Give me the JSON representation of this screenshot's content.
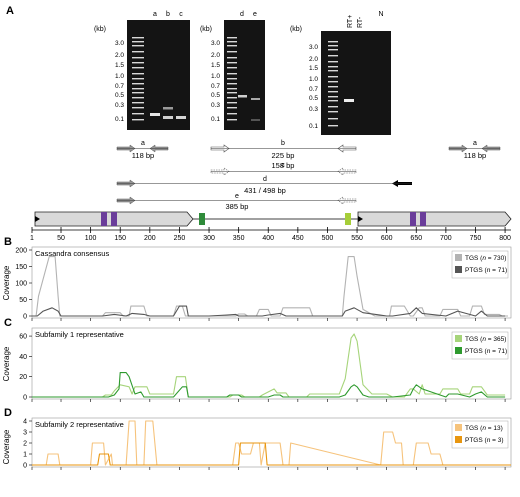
{
  "panel_a": {
    "letter": "A",
    "gels": [
      {
        "kb_label": "(kb)",
        "lanes": [
          "a",
          "b",
          "c"
        ],
        "ladder": [
          "3.0",
          "2.0",
          "1.5",
          "1.0",
          "0.7",
          "0.5",
          "0.3",
          "0.1"
        ]
      },
      {
        "kb_label": "(kb)",
        "lanes": [
          "d",
          "e"
        ],
        "ladder": [
          "3.0",
          "2.0",
          "1.5",
          "1.0",
          "0.7",
          "0.5",
          "0.3",
          "0.1"
        ]
      },
      {
        "kb_label": "(kb)",
        "lanes": [
          "RT+",
          "RT-",
          "N"
        ],
        "ladder": [
          "3.0",
          "2.0",
          "1.5",
          "1.0",
          "0.7",
          "0.5",
          "0.3",
          "0.1"
        ]
      }
    ],
    "amplicons": [
      {
        "letter": "a",
        "size": "118 bp"
      },
      {
        "letter": "b",
        "size": "225 bp"
      },
      {
        "letter": "c",
        "size": "158 bp"
      },
      {
        "letter": "d",
        "size": "431 / 498 bp"
      },
      {
        "letter": "e",
        "size": "385 bp"
      },
      {
        "letter": "a",
        "size": "118 bp"
      }
    ],
    "ruler_ticks": [
      "1",
      "50",
      "100",
      "150",
      "200",
      "250",
      "300",
      "350",
      "400",
      "450",
      "500",
      "550",
      "600",
      "650",
      "700",
      "750",
      "800"
    ]
  },
  "panels": [
    {
      "letter": "B",
      "title": "Cassandra consensus",
      "ylabel": "Coverage",
      "legend": [
        {
          "name": "TGS",
          "n": "730",
          "color": "#b3b3b3"
        },
        {
          "name": "PTGS",
          "n": "71",
          "color": "#555555"
        }
      ]
    },
    {
      "letter": "C",
      "title": "Subfamily 1 representative",
      "ylabel": "Coverage",
      "legend": [
        {
          "name": "TGS",
          "n": "365",
          "color": "#a6d47a"
        },
        {
          "name": "PTGS",
          "n": "71",
          "color": "#2e9a2e"
        }
      ]
    },
    {
      "letter": "D",
      "title": "Subfamily 2 representative",
      "ylabel": "Coverage",
      "legend": [
        {
          "name": "TGS",
          "n": "13",
          "color": "#f6c37c"
        },
        {
          "name": "PTGS",
          "n": "3",
          "color": "#e8960f"
        }
      ]
    }
  ],
  "chart_data": [
    {
      "type": "line",
      "title": "Cassandra consensus",
      "ylabel": "Coverage",
      "xlim": [
        1,
        800
      ],
      "ylim": [
        0,
        200
      ],
      "yticks": [
        "0",
        "50",
        "100",
        "150",
        "200"
      ],
      "series": [
        {
          "name": "TGS",
          "color": "#b3b3b3",
          "x": [
            1,
            8,
            12,
            30,
            33,
            40,
            45,
            48,
            120,
            125,
            150,
            155,
            165,
            168,
            190,
            195,
            240,
            245,
            255,
            260,
            265,
            345,
            350,
            360,
            365,
            380,
            385,
            400,
            405,
            420,
            425,
            470,
            475,
            525,
            528,
            535,
            545,
            550,
            560,
            580,
            605,
            608,
            630,
            640,
            645,
            655,
            660,
            665,
            690,
            695,
            720,
            725,
            740,
            745,
            760,
            765,
            790,
            795,
            805
          ],
          "y": [
            0,
            0,
            60,
            180,
            180,
            180,
            60,
            0,
            0,
            10,
            10,
            0,
            0,
            30,
            30,
            0,
            0,
            30,
            30,
            0,
            0,
            0,
            6,
            6,
            0,
            0,
            20,
            20,
            0,
            0,
            25,
            25,
            0,
            0,
            60,
            180,
            180,
            120,
            20,
            0,
            0,
            30,
            30,
            0,
            0,
            25,
            25,
            0,
            0,
            20,
            20,
            0,
            0,
            30,
            30,
            5,
            5,
            0,
            0
          ]
        },
        {
          "name": "PTGS",
          "color": "#555555",
          "x": [
            1,
            10,
            20,
            35,
            45,
            50,
            120,
            140,
            160,
            170,
            190,
            200,
            240,
            250,
            262,
            265,
            300,
            330,
            345,
            350,
            390,
            400,
            420,
            430,
            470,
            525,
            530,
            545,
            560,
            600,
            610,
            640,
            650,
            660,
            700,
            720,
            740,
            750,
            760,
            770,
            800
          ],
          "y": [
            0,
            0,
            15,
            25,
            15,
            0,
            0,
            5,
            0,
            8,
            5,
            0,
            0,
            30,
            30,
            0,
            0,
            3,
            5,
            0,
            0,
            3,
            8,
            0,
            0,
            0,
            15,
            25,
            10,
            0,
            0,
            8,
            25,
            8,
            0,
            15,
            5,
            0,
            15,
            0,
            0
          ]
        }
      ]
    },
    {
      "type": "line",
      "title": "Subfamily 1 representative",
      "ylabel": "Coverage",
      "xlim": [
        1,
        800
      ],
      "ylim": [
        0,
        65
      ],
      "yticks": [
        "0",
        "20",
        "40",
        "60"
      ],
      "series": [
        {
          "name": "TGS",
          "color": "#a6d47a",
          "x": [
            1,
            120,
            125,
            135,
            140,
            150,
            165,
            170,
            175,
            195,
            200,
            240,
            245,
            260,
            265,
            335,
            340,
            355,
            360,
            385,
            390,
            410,
            415,
            430,
            435,
            465,
            470,
            520,
            530,
            540,
            545,
            550,
            560,
            575,
            600,
            610,
            630,
            640,
            645,
            655,
            660,
            665,
            690,
            695,
            720,
            725,
            740,
            745,
            760,
            770,
            800
          ],
          "y": [
            0,
            0,
            2,
            2,
            6,
            12,
            10,
            3,
            10,
            10,
            3,
            3,
            20,
            20,
            0,
            0,
            2,
            2,
            0,
            0,
            2,
            8,
            4,
            4,
            0,
            0,
            3,
            3,
            18,
            58,
            62,
            55,
            12,
            3,
            3,
            0,
            0,
            8,
            8,
            3,
            12,
            3,
            3,
            8,
            8,
            3,
            3,
            10,
            10,
            2,
            2
          ]
        },
        {
          "name": "PTGS",
          "color": "#2e9a2e",
          "x": [
            1,
            130,
            140,
            148,
            150,
            160,
            165,
            175,
            185,
            190,
            240,
            255,
            262,
            265,
            330,
            335,
            350,
            355,
            400,
            410,
            420,
            425,
            520,
            530,
            540,
            545,
            550,
            560,
            570,
            610,
            640,
            645,
            650,
            660,
            700,
            705,
            720,
            740,
            750,
            760,
            770,
            800
          ],
          "y": [
            0,
            0,
            2,
            8,
            24,
            24,
            20,
            3,
            5,
            0,
            0,
            10,
            10,
            0,
            0,
            2,
            2,
            0,
            0,
            2,
            2,
            0,
            0,
            2,
            10,
            12,
            10,
            2,
            0,
            0,
            2,
            8,
            12,
            8,
            0,
            3,
            3,
            0,
            3,
            5,
            0,
            0
          ]
        }
      ]
    },
    {
      "type": "line",
      "title": "Subfamily 2 representative",
      "ylabel": "Coverage",
      "xlim": [
        1,
        800
      ],
      "ylim": [
        0,
        4
      ],
      "yticks": [
        "0",
        "1",
        "2",
        "3",
        "4"
      ],
      "series": [
        {
          "name": "TGS",
          "color": "#f6c37c",
          "x": [
            1,
            25,
            28,
            45,
            48,
            100,
            103,
            122,
            125,
            135,
            137,
            160,
            165,
            175,
            178,
            190,
            193,
            205,
            212,
            340,
            345,
            350,
            355,
            370,
            375,
            385,
            388,
            395,
            400,
            420,
            425,
            435,
            438,
            590,
            595,
            610,
            615,
            625,
            628,
            645,
            650,
            670,
            675,
            690,
            695,
            810
          ],
          "y": [
            0,
            0,
            1,
            1,
            0,
            0,
            2,
            2,
            0,
            1,
            0,
            0,
            4,
            4,
            0,
            0,
            4,
            4,
            0,
            0,
            2,
            2,
            1,
            1,
            2,
            2,
            0,
            2,
            2,
            2,
            0,
            0,
            2,
            0,
            3,
            3,
            2,
            2,
            0,
            0,
            2,
            2,
            1,
            1,
            0,
            0
          ]
        },
        {
          "name": "PTGS",
          "color": "#e8960f",
          "x": [
            1,
            112,
            115,
            130,
            133,
            350,
            353,
            395,
            398,
            810
          ],
          "y": [
            0,
            0,
            1,
            1,
            0,
            0,
            2,
            2,
            0,
            0
          ]
        }
      ]
    }
  ]
}
